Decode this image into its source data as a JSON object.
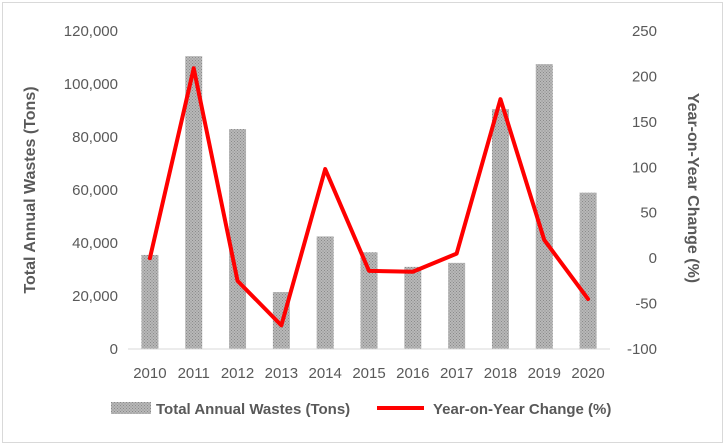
{
  "chart_data": {
    "type": "bar+line",
    "categories": [
      "2010",
      "2011",
      "2012",
      "2013",
      "2014",
      "2015",
      "2016",
      "2017",
      "2018",
      "2019",
      "2020"
    ],
    "series": [
      {
        "name": "Total Annual Wastes (Tons)",
        "type": "bar",
        "axis": "left",
        "values": [
          35500,
          110500,
          83000,
          21500,
          42500,
          36500,
          31000,
          32500,
          90500,
          107500,
          59000
        ]
      },
      {
        "name": "Year-on-Year Change (%)",
        "type": "line",
        "axis": "right",
        "values": [
          0,
          209,
          -25,
          -74,
          98,
          -14,
          -15,
          5,
          175,
          20,
          -45
        ]
      }
    ],
    "ylabel_left": "Total Annual Wastes (Tons)",
    "ylabel_right": "Year-on-Year Change (%)",
    "ylim_left": [
      0,
      120000
    ],
    "ylim_right": [
      -100,
      250
    ],
    "yticks_left": [
      "0",
      "20,000",
      "40,000",
      "60,000",
      "80,000",
      "100,000",
      "120,000"
    ],
    "yticks_right": [
      "-100",
      "-50",
      "0",
      "50",
      "100",
      "150",
      "200",
      "250"
    ],
    "legend": [
      "Total Annual Wastes (Tons)",
      "Year-on-Year Change (%)"
    ],
    "legend_position": "bottom",
    "colors": {
      "bar": "#a6a6a6",
      "line": "#ff0000"
    }
  }
}
